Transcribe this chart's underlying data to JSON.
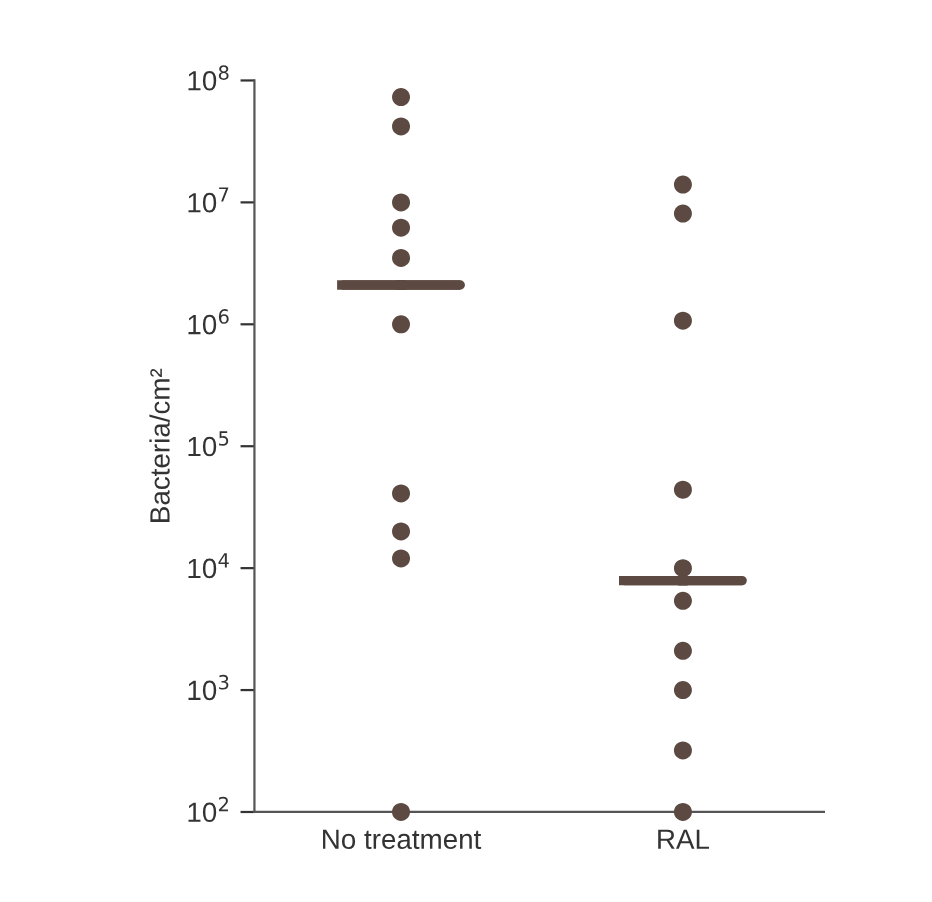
{
  "chart_data": {
    "type": "scatter",
    "ylabel": "Bacteria/cm²",
    "categories": [
      "No treatment",
      "RAL"
    ],
    "log": "y",
    "ylim": [
      100,
      100000000
    ],
    "yticks": [
      {
        "value": 100,
        "label": "10$^{2}$"
      },
      {
        "value": 1000,
        "label": "10$^{3}$"
      },
      {
        "value": 10000,
        "label": "10$^{4}$"
      },
      {
        "value": 100000,
        "label": "10$^{5}$"
      },
      {
        "value": 1000000,
        "label": "10$^{6}$"
      },
      {
        "value": 10000000,
        "label": "10$^{7}$"
      },
      {
        "value": 100000000,
        "label": "10$^{8}$"
      }
    ],
    "grid": false,
    "legend": false,
    "marker": "circle",
    "series": [
      {
        "color": "#5c4a42",
        "x": [
          "No treatment",
          "No treatment",
          "No treatment",
          "No treatment",
          "No treatment",
          "No treatment",
          "No treatment",
          "No treatment",
          "No treatment",
          "No treatment",
          "RAL",
          "RAL",
          "RAL",
          "RAL",
          "RAL",
          "RAL",
          "RAL",
          "RAL",
          "RAL",
          "RAL"
        ],
        "values": [
          73000000,
          42000000,
          10000000,
          6200000,
          3500000,
          1000000,
          41000,
          20000,
          12000,
          100,
          14000000,
          8100000,
          1070000,
          44000,
          10000,
          5400,
          2100,
          1000,
          320,
          100
        ]
      },
      {
        "type": "box",
        "color": "#5c4a42",
        "boxes": [
          {
            "low": 2100000,
            "q1": 2100000,
            "median": 2100000,
            "q3": 2100000,
            "high": 2100000
          },
          {
            "low": 7900,
            "q1": 7900,
            "median": 7900,
            "q3": 7900,
            "high": 7900
          }
        ]
      }
    ]
  }
}
